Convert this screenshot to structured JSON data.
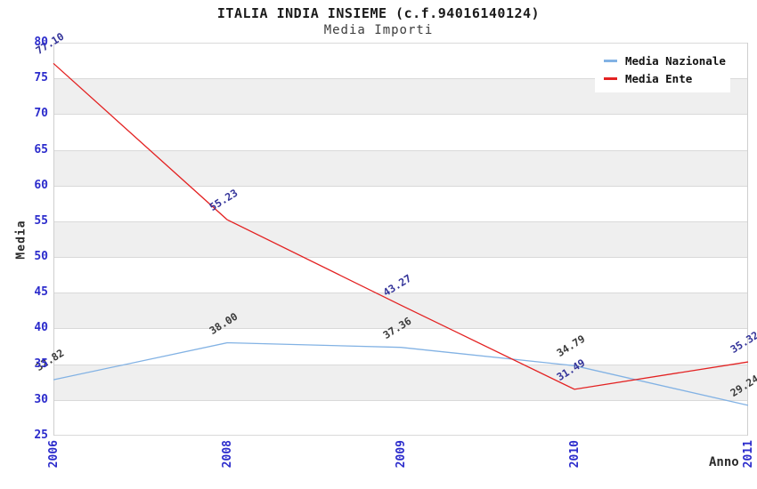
{
  "chart_data": {
    "type": "line",
    "title": "ITALIA INDIA INSIEME (c.f.94016140124)",
    "subtitle": "Media Importi",
    "xlabel": "Anno",
    "ylabel": "Media",
    "categories": [
      "2006",
      "2008",
      "2009",
      "2010",
      "2011"
    ],
    "ylim": [
      25,
      80
    ],
    "ytick_step": 5,
    "yticks": [
      25,
      30,
      35,
      40,
      45,
      50,
      55,
      60,
      65,
      70,
      75,
      80
    ],
    "grid": "horizontal-gridlines-with-alternating-bands",
    "legend_position": "top-right",
    "series": [
      {
        "name": "Media Nazionale",
        "color": "#82b2e4",
        "label_color": "#3a3a3a",
        "values": [
          32.82,
          38.0,
          37.36,
          34.79,
          29.24
        ]
      },
      {
        "name": "Media Ente",
        "color": "#e32222",
        "label_color": "#333399",
        "values": [
          77.1,
          55.23,
          43.27,
          31.49,
          35.32
        ]
      }
    ],
    "colors": {
      "tick_label": "#2c2ccc",
      "band_fill": "#efefef",
      "gridline": "#d9d9d9",
      "axis_border": "#cfcfcf",
      "legend_bg": "#ffffff"
    }
  }
}
